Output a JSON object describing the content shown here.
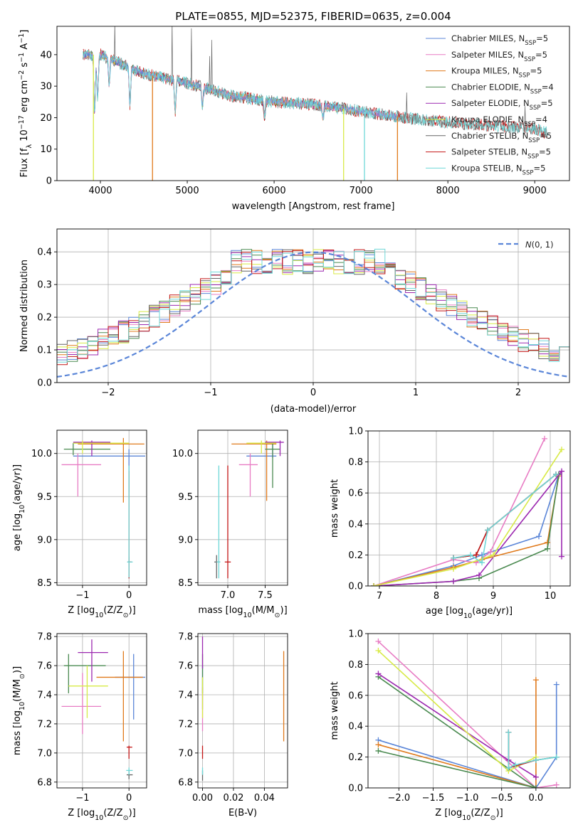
{
  "title": "PLATE=0855, MJD=52375, FIBERID=0635, z=0.004",
  "colors": {
    "Chabrier MILES": "#5b86d8",
    "Salpeter MILES": "#e87cc4",
    "Kroupa MILES": "#e07a1c",
    "Chabrier ELODIE": "#4a8a50",
    "Salpeter ELODIE": "#9c28b0",
    "Kroupa ELODIE": "#d8ea46",
    "Chabrier STELIB": "#666666",
    "Salpeter STELIB": "#c41616",
    "Kroupa STELIB": "#6fd8d8"
  },
  "chart_data": [
    {
      "id": "spectrum",
      "type": "line",
      "title": "PLATE=0855, MJD=52375, FIBERID=0635, z=0.004",
      "xlabel": "wavelength [Angstrom, rest frame]",
      "ylabel": "Flux [f_λ 10^-17 erg cm^-2 s^-1 A^-1]",
      "xlim": [
        3500,
        9400
      ],
      "ylim": [
        0,
        49
      ],
      "xticks": [
        4000,
        5000,
        6000,
        7000,
        8000,
        9000
      ],
      "yticks": [
        0,
        10,
        20,
        30,
        40
      ],
      "legend_position": "top-right",
      "grid": false,
      "continuum": {
        "x": [
          3800,
          4000,
          4500,
          5000,
          5500,
          6000,
          6500,
          7000,
          7500,
          8000,
          8500,
          9000,
          9150
        ],
        "y": [
          40,
          40,
          34,
          31,
          27,
          25,
          24,
          22,
          20,
          18.5,
          17.5,
          16.5,
          15
        ]
      },
      "series": [
        {
          "name": "Chabrier MILES",
          "label": "Chabrier MILES, N",
          "sub": "SSP",
          "tail": "=5",
          "x_end": 7420
        },
        {
          "name": "Salpeter MILES",
          "label": "Salpeter MILES, N",
          "sub": "SSP",
          "tail": "=5",
          "x_end": 7420
        },
        {
          "name": "Kroupa MILES",
          "label": "Kroupa MILES, N",
          "sub": "SSP",
          "tail": "=5",
          "x_end": 7420
        },
        {
          "name": "Chabrier ELODIE",
          "label": "Chabrier ELODIE, N",
          "sub": "SSP",
          "tail": "=4",
          "x_end": 6800
        },
        {
          "name": "Salpeter ELODIE",
          "label": "Salpeter ELODIE, N",
          "sub": "SSP",
          "tail": "=5",
          "x_end": 6800
        },
        {
          "name": "Kroupa ELODIE",
          "label": "Kroupa ELODIE, N",
          "sub": "SSP",
          "tail": "=4",
          "x_end": 6800
        },
        {
          "name": "Chabrier STELIB",
          "label": "Chabrier STELIB, N",
          "sub": "SSP",
          "tail": "=5",
          "x_end": 9150
        },
        {
          "name": "Salpeter STELIB",
          "label": "Salpeter STELIB, N",
          "sub": "SSP",
          "tail": "=5",
          "x_end": 9150
        },
        {
          "name": "Kroupa STELIB",
          "label": "Kroupa STELIB, N",
          "sub": "SSP",
          "tail": "=5",
          "x_end": 9150
        }
      ]
    },
    {
      "id": "residuals",
      "type": "histogram",
      "xlabel": "(data-model)/error",
      "ylabel": "Normed distribution",
      "xlim": [
        -2.5,
        2.5
      ],
      "ylim": [
        0,
        0.47
      ],
      "xticks": [
        -2,
        -1,
        0,
        1,
        2
      ],
      "yticks": [
        0.0,
        0.1,
        0.2,
        0.3,
        0.4
      ],
      "grid": true,
      "legend_position": "top-right",
      "reference": {
        "label": "N(0,1)",
        "mean": 0,
        "sigma": 1
      },
      "bins": {
        "start": -2.5,
        "width": 0.1,
        "count": 50
      }
    },
    {
      "id": "age_vs_Z",
      "type": "scatter",
      "xlabel": "Z [log10(Z/Z⊙)]",
      "ylabel": "age [log10(age/yr)]",
      "xlim": [
        -1.55,
        0.38
      ],
      "ylim": [
        8.47,
        10.27
      ],
      "xticks": [
        -1,
        0
      ],
      "yticks": [
        8.5,
        9.0,
        9.5,
        10.0
      ],
      "grid": true,
      "points": [
        {
          "s": "Chabrier MILES",
          "x": 0.0,
          "y": 9.97,
          "xl": -1.2,
          "xh": 0.35,
          "yl": 9.55,
          "yh": 10.05
        },
        {
          "s": "Salpeter MILES",
          "x": -1.1,
          "y": 9.87,
          "xl": -1.45,
          "xh": -0.6,
          "yl": 9.5,
          "yh": 10.0
        },
        {
          "s": "Kroupa MILES",
          "x": -0.12,
          "y": 10.11,
          "xl": -1.1,
          "xh": 0.33,
          "yl": 9.43,
          "yh": 10.18
        },
        {
          "s": "Chabrier ELODIE",
          "x": -1.2,
          "y": 10.05,
          "xl": -1.4,
          "xh": -0.4,
          "yl": 9.98,
          "yh": 10.12
        },
        {
          "s": "Salpeter ELODIE",
          "x": -0.8,
          "y": 10.13,
          "xl": -1.2,
          "xh": -0.4,
          "yl": 9.97,
          "yh": 10.15
        },
        {
          "s": "Kroupa ELODIE",
          "x": -1.0,
          "y": 10.12,
          "xl": -1.2,
          "xh": 0.0,
          "yl": 10.0,
          "yh": 10.15
        },
        {
          "s": "Chabrier STELIB",
          "x": 0.0,
          "y": 8.74,
          "xl": -0.03,
          "xh": 0.06,
          "yl": 8.55,
          "yh": 8.8
        },
        {
          "s": "Salpeter STELIB",
          "x": 0.0,
          "y": 8.74,
          "xl": -0.03,
          "xh": 0.05,
          "yl": 8.55,
          "yh": 9.8
        },
        {
          "s": "Kroupa STELIB",
          "x": 0.0,
          "y": 8.74,
          "xl": -0.04,
          "xh": 0.08,
          "yl": 8.56,
          "yh": 9.86
        }
      ]
    },
    {
      "id": "age_vs_mass",
      "type": "scatter",
      "xlabel": "mass [log10(M/M⊙)]",
      "ylabel": "",
      "xlim": [
        6.6,
        7.8
      ],
      "ylim": [
        8.47,
        10.27
      ],
      "xticks": [
        7.0,
        7.5
      ],
      "yticks": [
        8.5,
        9.0,
        9.5,
        10.0
      ],
      "grid": true,
      "points": [
        {
          "s": "Chabrier MILES",
          "x": 7.6,
          "y": 9.97,
          "xl": 7.25,
          "xh": 7.65,
          "yl": 9.95,
          "yh": 10.12
        },
        {
          "s": "Salpeter MILES",
          "x": 7.3,
          "y": 9.87,
          "xl": 7.15,
          "xh": 7.4,
          "yl": 9.5,
          "yh": 10.0
        },
        {
          "s": "Kroupa MILES",
          "x": 7.52,
          "y": 10.11,
          "xl": 7.05,
          "xh": 7.65,
          "yl": 9.45,
          "yh": 10.15
        },
        {
          "s": "Chabrier ELODIE",
          "x": 7.6,
          "y": 10.05,
          "xl": 7.5,
          "xh": 7.7,
          "yl": 9.6,
          "yh": 10.12
        },
        {
          "s": "Salpeter ELODIE",
          "x": 7.7,
          "y": 10.13,
          "xl": 7.5,
          "xh": 7.75,
          "yl": 9.97,
          "yh": 10.15
        },
        {
          "s": "Kroupa ELODIE",
          "x": 7.45,
          "y": 10.12,
          "xl": 7.25,
          "xh": 7.65,
          "yl": 10.0,
          "yh": 10.15
        },
        {
          "s": "Chabrier STELIB",
          "x": 6.85,
          "y": 8.74,
          "xl": 6.82,
          "xh": 6.9,
          "yl": 8.55,
          "yh": 8.82
        },
        {
          "s": "Salpeter STELIB",
          "x": 7.0,
          "y": 8.74,
          "xl": 6.96,
          "xh": 7.04,
          "yl": 8.55,
          "yh": 9.86
        },
        {
          "s": "Kroupa STELIB",
          "x": 6.88,
          "y": 8.74,
          "xl": 6.85,
          "xh": 6.9,
          "yl": 8.55,
          "yh": 9.86
        }
      ]
    },
    {
      "id": "weight_vs_age",
      "type": "line",
      "xlabel": "age [log10(age/yr)]",
      "ylabel": "mass weight",
      "xlim": [
        6.8,
        10.35
      ],
      "ylim": [
        0,
        1.0
      ],
      "xticks": [
        7,
        8,
        9,
        10
      ],
      "yticks": [
        0.0,
        0.2,
        0.4,
        0.6,
        0.8,
        1.0
      ],
      "grid": true,
      "series": [
        {
          "name": "Chabrier MILES",
          "x": [
            6.9,
            8.3,
            8.8,
            9.8,
            10.15
          ],
          "y": [
            0.0,
            0.13,
            0.2,
            0.32,
            0.72
          ]
        },
        {
          "name": "Salpeter MILES",
          "x": [
            6.9,
            8.3,
            8.7,
            8.95,
            9.9
          ],
          "y": [
            0.0,
            0.17,
            0.15,
            0.22,
            0.95
          ]
        },
        {
          "name": "Kroupa MILES",
          "x": [
            6.9,
            8.3,
            8.8,
            9.95,
            10.15
          ],
          "y": [
            0.0,
            0.12,
            0.17,
            0.28,
            0.71
          ]
        },
        {
          "name": "Chabrier ELODIE",
          "x": [
            6.9,
            8.3,
            8.75,
            9.95,
            10.15
          ],
          "y": [
            0.0,
            0.03,
            0.05,
            0.24,
            0.72
          ]
        },
        {
          "name": "Salpeter ELODIE",
          "x": [
            6.9,
            8.3,
            8.75,
            10.2,
            10.2
          ],
          "y": [
            0.0,
            0.03,
            0.07,
            0.74,
            0.19
          ]
        },
        {
          "name": "Kroupa ELODIE",
          "x": [
            6.9,
            8.3,
            9.0,
            10.2
          ],
          "y": [
            0.0,
            0.11,
            0.2,
            0.88
          ]
        },
        {
          "name": "Chabrier STELIB",
          "x": [
            8.3,
            8.7,
            8.9,
            10.1
          ],
          "y": [
            0.18,
            0.2,
            0.36,
            0.72
          ]
        },
        {
          "name": "Salpeter STELIB",
          "x": [
            8.3,
            8.7,
            8.9,
            10.1
          ],
          "y": [
            0.18,
            0.2,
            0.36,
            0.72
          ]
        },
        {
          "name": "Kroupa STELIB",
          "x": [
            8.3,
            8.6,
            8.8,
            8.9,
            10.1
          ],
          "y": [
            0.18,
            0.2,
            0.15,
            0.36,
            0.72
          ]
        }
      ]
    },
    {
      "id": "mass_vs_Z",
      "type": "scatter",
      "xlabel": "Z [log10(Z/Z⊙)]",
      "ylabel": "mass [log10(M/M⊙)]",
      "xlim": [
        -1.55,
        0.38
      ],
      "ylim": [
        6.76,
        7.82
      ],
      "xticks": [
        -1,
        0
      ],
      "yticks": [
        6.8,
        7.0,
        7.2,
        7.4,
        7.6,
        7.8
      ],
      "grid": true,
      "points": [
        {
          "s": "Chabrier MILES",
          "x": 0.1,
          "y": 7.52,
          "xl": -0.3,
          "xh": 0.35,
          "yl": 7.23,
          "yh": 7.68
        },
        {
          "s": "Salpeter MILES",
          "x": -1.0,
          "y": 7.32,
          "xl": -1.45,
          "xh": -0.6,
          "yl": 7.13,
          "yh": 7.55
        },
        {
          "s": "Kroupa MILES",
          "x": -0.12,
          "y": 7.52,
          "xl": -0.7,
          "xh": 0.3,
          "yl": 7.08,
          "yh": 7.7
        },
        {
          "s": "Chabrier ELODIE",
          "x": -1.3,
          "y": 7.6,
          "xl": -1.4,
          "xh": -0.5,
          "yl": 7.41,
          "yh": 7.68
        },
        {
          "s": "Salpeter ELODIE",
          "x": -0.8,
          "y": 7.69,
          "xl": -1.1,
          "xh": -0.45,
          "yl": 7.49,
          "yh": 7.78
        },
        {
          "s": "Kroupa ELODIE",
          "x": -0.9,
          "y": 7.46,
          "xl": -1.3,
          "xh": -0.45,
          "yl": 7.24,
          "yh": 7.6
        },
        {
          "s": "Chabrier STELIB",
          "x": 0.0,
          "y": 6.85,
          "xl": -0.05,
          "xh": 0.08,
          "yl": 6.82,
          "yh": 6.88
        },
        {
          "s": "Salpeter STELIB",
          "x": 0.0,
          "y": 7.04,
          "xl": -0.05,
          "xh": 0.07,
          "yl": 6.96,
          "yh": 7.05
        },
        {
          "s": "Kroupa STELIB",
          "x": 0.0,
          "y": 6.88,
          "xl": -0.06,
          "xh": 0.08,
          "yl": 6.85,
          "yh": 6.9
        }
      ]
    },
    {
      "id": "mass_vs_EBV",
      "type": "scatter",
      "xlabel": "E(B-V)",
      "ylabel": "",
      "xlim": [
        -0.003,
        0.055
      ],
      "ylim": [
        6.76,
        7.82
      ],
      "xticks": [
        0.0,
        0.02,
        0.04
      ],
      "yticks": [
        6.8,
        7.0,
        7.2,
        7.4,
        7.6,
        7.8
      ],
      "grid": true,
      "points": [
        {
          "s": "Chabrier MILES",
          "x": 0.0,
          "y": 7.52,
          "xl": 0.0,
          "xh": 0.0,
          "yl": 7.3,
          "yh": 7.6
        },
        {
          "s": "Salpeter MILES",
          "x": 0.0,
          "y": 7.32,
          "xl": 0.0,
          "xh": 0.0,
          "yl": 7.15,
          "yh": 7.45
        },
        {
          "s": "Kroupa MILES",
          "x": 0.0525,
          "y": 7.52,
          "xl": 0.0525,
          "xh": 0.0525,
          "yl": 7.08,
          "yh": 7.7
        },
        {
          "s": "Chabrier ELODIE",
          "x": 0.0,
          "y": 7.6,
          "xl": 0.0,
          "xh": 0.0,
          "yl": 7.41,
          "yh": 7.68
        },
        {
          "s": "Salpeter ELODIE",
          "x": 0.0,
          "y": 7.69,
          "xl": 0.0,
          "xh": 0.0,
          "yl": 7.58,
          "yh": 7.8
        },
        {
          "s": "Kroupa ELODIE",
          "x": 0.0,
          "y": 7.46,
          "xl": 0.0,
          "xh": 0.0,
          "yl": 7.24,
          "yh": 7.52
        },
        {
          "s": "Chabrier STELIB",
          "x": 0.0,
          "y": 6.85,
          "xl": 0.0,
          "xh": 0.0,
          "yl": 6.81,
          "yh": 6.88
        },
        {
          "s": "Salpeter STELIB",
          "x": 0.0,
          "y": 7.0,
          "xl": 0.0,
          "xh": 0.0,
          "yl": 6.96,
          "yh": 7.05
        },
        {
          "s": "Kroupa STELIB",
          "x": 0.0,
          "y": 6.88,
          "xl": 0.0,
          "xh": 0.0,
          "yl": 6.85,
          "yh": 6.9
        }
      ]
    },
    {
      "id": "weight_vs_Z",
      "type": "line",
      "xlabel": "Z [log10(Z/Z⊙)]",
      "ylabel": "mass weight",
      "xlim": [
        -2.45,
        0.5
      ],
      "ylim": [
        0,
        1.0
      ],
      "xticks": [
        -2.0,
        -1.5,
        -1.0,
        -0.5,
        0.0
      ],
      "yticks": [
        0.0,
        0.2,
        0.4,
        0.6,
        0.8,
        1.0
      ],
      "grid": true,
      "series": [
        {
          "name": "Chabrier MILES",
          "x": [
            -2.3,
            0.0,
            0.3,
            0.3
          ],
          "y": [
            0.31,
            0.0,
            0.2,
            0.67
          ]
        },
        {
          "name": "Salpeter MILES",
          "x": [
            -2.3,
            0.0,
            0.3
          ],
          "y": [
            0.95,
            0.0,
            0.02
          ]
        },
        {
          "name": "Kroupa MILES",
          "x": [
            -2.3,
            0.0,
            0.0
          ],
          "y": [
            0.28,
            0.0,
            0.7
          ]
        },
        {
          "name": "Chabrier ELODIE",
          "x": [
            -2.3,
            0.0,
            -2.3
          ],
          "y": [
            0.24,
            0.0,
            0.72
          ]
        },
        {
          "name": "Salpeter ELODIE",
          "x": [
            -2.3,
            -0.4,
            0.0
          ],
          "y": [
            0.74,
            0.18,
            0.07
          ]
        },
        {
          "name": "Kroupa ELODIE",
          "x": [
            -2.3,
            -0.4,
            0.0
          ],
          "y": [
            0.89,
            0.11,
            0.2
          ]
        },
        {
          "name": "Chabrier STELIB",
          "x": [
            -0.4,
            -0.4,
            0.0,
            0.3
          ],
          "y": [
            0.36,
            0.13,
            0.18,
            0.2
          ]
        },
        {
          "name": "Salpeter STELIB",
          "x": [
            -0.4,
            -0.4,
            0.0
          ],
          "y": [
            0.36,
            0.13,
            0.18
          ]
        },
        {
          "name": "Kroupa STELIB",
          "x": [
            -0.4,
            -0.4,
            -0.3,
            0.0,
            0.3
          ],
          "y": [
            0.36,
            0.13,
            0.15,
            0.18,
            0.2
          ]
        }
      ]
    }
  ]
}
